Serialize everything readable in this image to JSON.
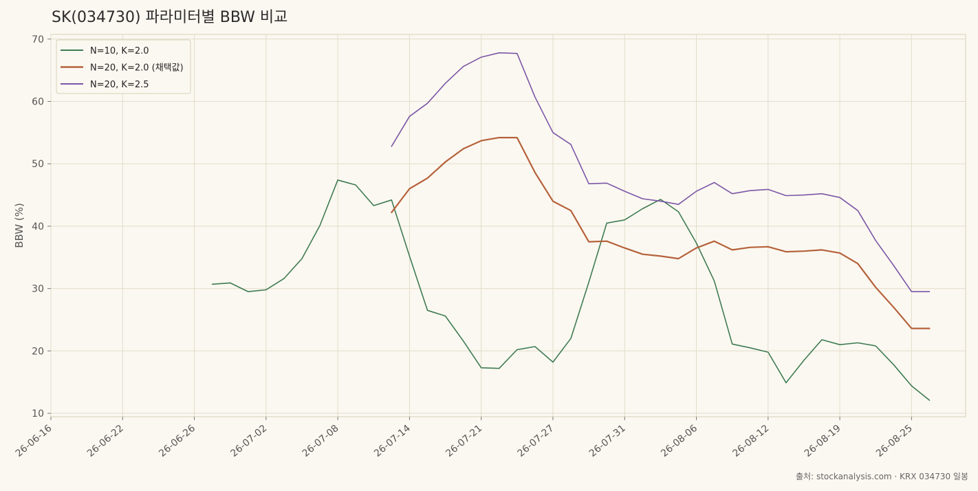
{
  "chart_data": {
    "type": "line",
    "title": "SK(034730) 파라미터별 BBW 비교",
    "xlabel": "",
    "ylabel": "BBW (%)",
    "ylim": [
      10,
      70
    ],
    "yticks": [
      10,
      20,
      30,
      40,
      50,
      60,
      70
    ],
    "xticks": [
      "26-06-16",
      "26-06-22",
      "26-06-26",
      "26-07-02",
      "26-07-08",
      "26-07-14",
      "26-07-21",
      "26-07-27",
      "26-07-31",
      "26-08-06",
      "26-08-12",
      "26-08-19",
      "26-08-25"
    ],
    "grid": true,
    "legend_position": "top-left",
    "source": "출처: stockanalysis.com · KRX 034730 일봉",
    "series": [
      {
        "name": "N=10, K=2.0",
        "color": "#3e7b52",
        "width": 1.6,
        "points": [
          [
            9,
            30.7
          ],
          [
            10,
            30.9
          ],
          [
            11,
            29.5
          ],
          [
            12,
            29.8
          ],
          [
            13,
            31.6
          ],
          [
            14,
            34.8
          ],
          [
            15,
            40.1
          ],
          [
            16,
            47.4
          ],
          [
            17,
            46.6
          ],
          [
            18,
            43.3
          ],
          [
            19,
            44.2
          ],
          [
            20,
            35.2
          ],
          [
            21,
            26.5
          ],
          [
            22,
            25.6
          ],
          [
            23,
            21.6
          ],
          [
            24,
            17.3
          ],
          [
            25,
            17.2
          ],
          [
            26,
            20.2
          ],
          [
            27,
            20.7
          ],
          [
            28,
            18.2
          ],
          [
            29,
            22.0
          ],
          [
            30,
            31.0
          ],
          [
            31,
            40.5
          ],
          [
            32,
            41.0
          ],
          [
            33,
            42.8
          ],
          [
            34,
            44.3
          ],
          [
            35,
            42.3
          ],
          [
            36,
            37.3
          ],
          [
            37,
            31.2
          ],
          [
            38,
            21.1
          ],
          [
            39,
            20.5
          ],
          [
            40,
            19.8
          ],
          [
            41,
            14.9
          ],
          [
            42,
            18.5
          ],
          [
            43,
            21.8
          ],
          [
            44,
            21.0
          ],
          [
            45,
            21.3
          ],
          [
            46,
            20.8
          ],
          [
            47,
            17.8
          ],
          [
            48,
            14.4
          ],
          [
            49,
            12.1
          ]
        ]
      },
      {
        "name": "N=20, K=2.0 (채택값)",
        "color": "#b5613a",
        "width": 2.2,
        "points": [
          [
            19,
            42.2
          ],
          [
            20,
            46.0
          ],
          [
            21,
            47.7
          ],
          [
            22,
            50.3
          ],
          [
            23,
            52.4
          ],
          [
            24,
            53.7
          ],
          [
            25,
            54.2
          ],
          [
            26,
            54.2
          ],
          [
            27,
            48.6
          ],
          [
            28,
            44.0
          ],
          [
            29,
            42.5
          ],
          [
            30,
            37.5
          ],
          [
            31,
            37.6
          ],
          [
            32,
            36.5
          ],
          [
            33,
            35.5
          ],
          [
            34,
            35.2
          ],
          [
            35,
            34.8
          ],
          [
            36,
            36.5
          ],
          [
            37,
            37.6
          ],
          [
            38,
            36.2
          ],
          [
            39,
            36.6
          ],
          [
            40,
            36.7
          ],
          [
            41,
            35.9
          ],
          [
            42,
            36.0
          ],
          [
            43,
            36.2
          ],
          [
            44,
            35.7
          ],
          [
            45,
            34.0
          ],
          [
            46,
            30.2
          ],
          [
            47,
            27.0
          ],
          [
            48,
            23.6
          ],
          [
            49,
            23.6
          ]
        ]
      },
      {
        "name": "N=20, K=2.5",
        "color": "#7b56a6",
        "width": 1.6,
        "points": [
          [
            19,
            52.8
          ],
          [
            20,
            57.6
          ],
          [
            21,
            59.7
          ],
          [
            22,
            62.9
          ],
          [
            23,
            65.6
          ],
          [
            24,
            67.1
          ],
          [
            25,
            67.8
          ],
          [
            26,
            67.7
          ],
          [
            27,
            60.7
          ],
          [
            28,
            55.0
          ],
          [
            29,
            53.1
          ],
          [
            30,
            46.8
          ],
          [
            31,
            46.9
          ],
          [
            32,
            45.6
          ],
          [
            33,
            44.4
          ],
          [
            34,
            44.0
          ],
          [
            35,
            43.5
          ],
          [
            36,
            45.6
          ],
          [
            37,
            47.0
          ],
          [
            38,
            45.2
          ],
          [
            39,
            45.7
          ],
          [
            40,
            45.9
          ],
          [
            41,
            44.9
          ],
          [
            42,
            45.0
          ],
          [
            43,
            45.2
          ],
          [
            44,
            44.6
          ],
          [
            45,
            42.5
          ],
          [
            46,
            37.7
          ],
          [
            47,
            33.7
          ],
          [
            48,
            29.5
          ],
          [
            49,
            29.5
          ]
        ]
      }
    ]
  }
}
